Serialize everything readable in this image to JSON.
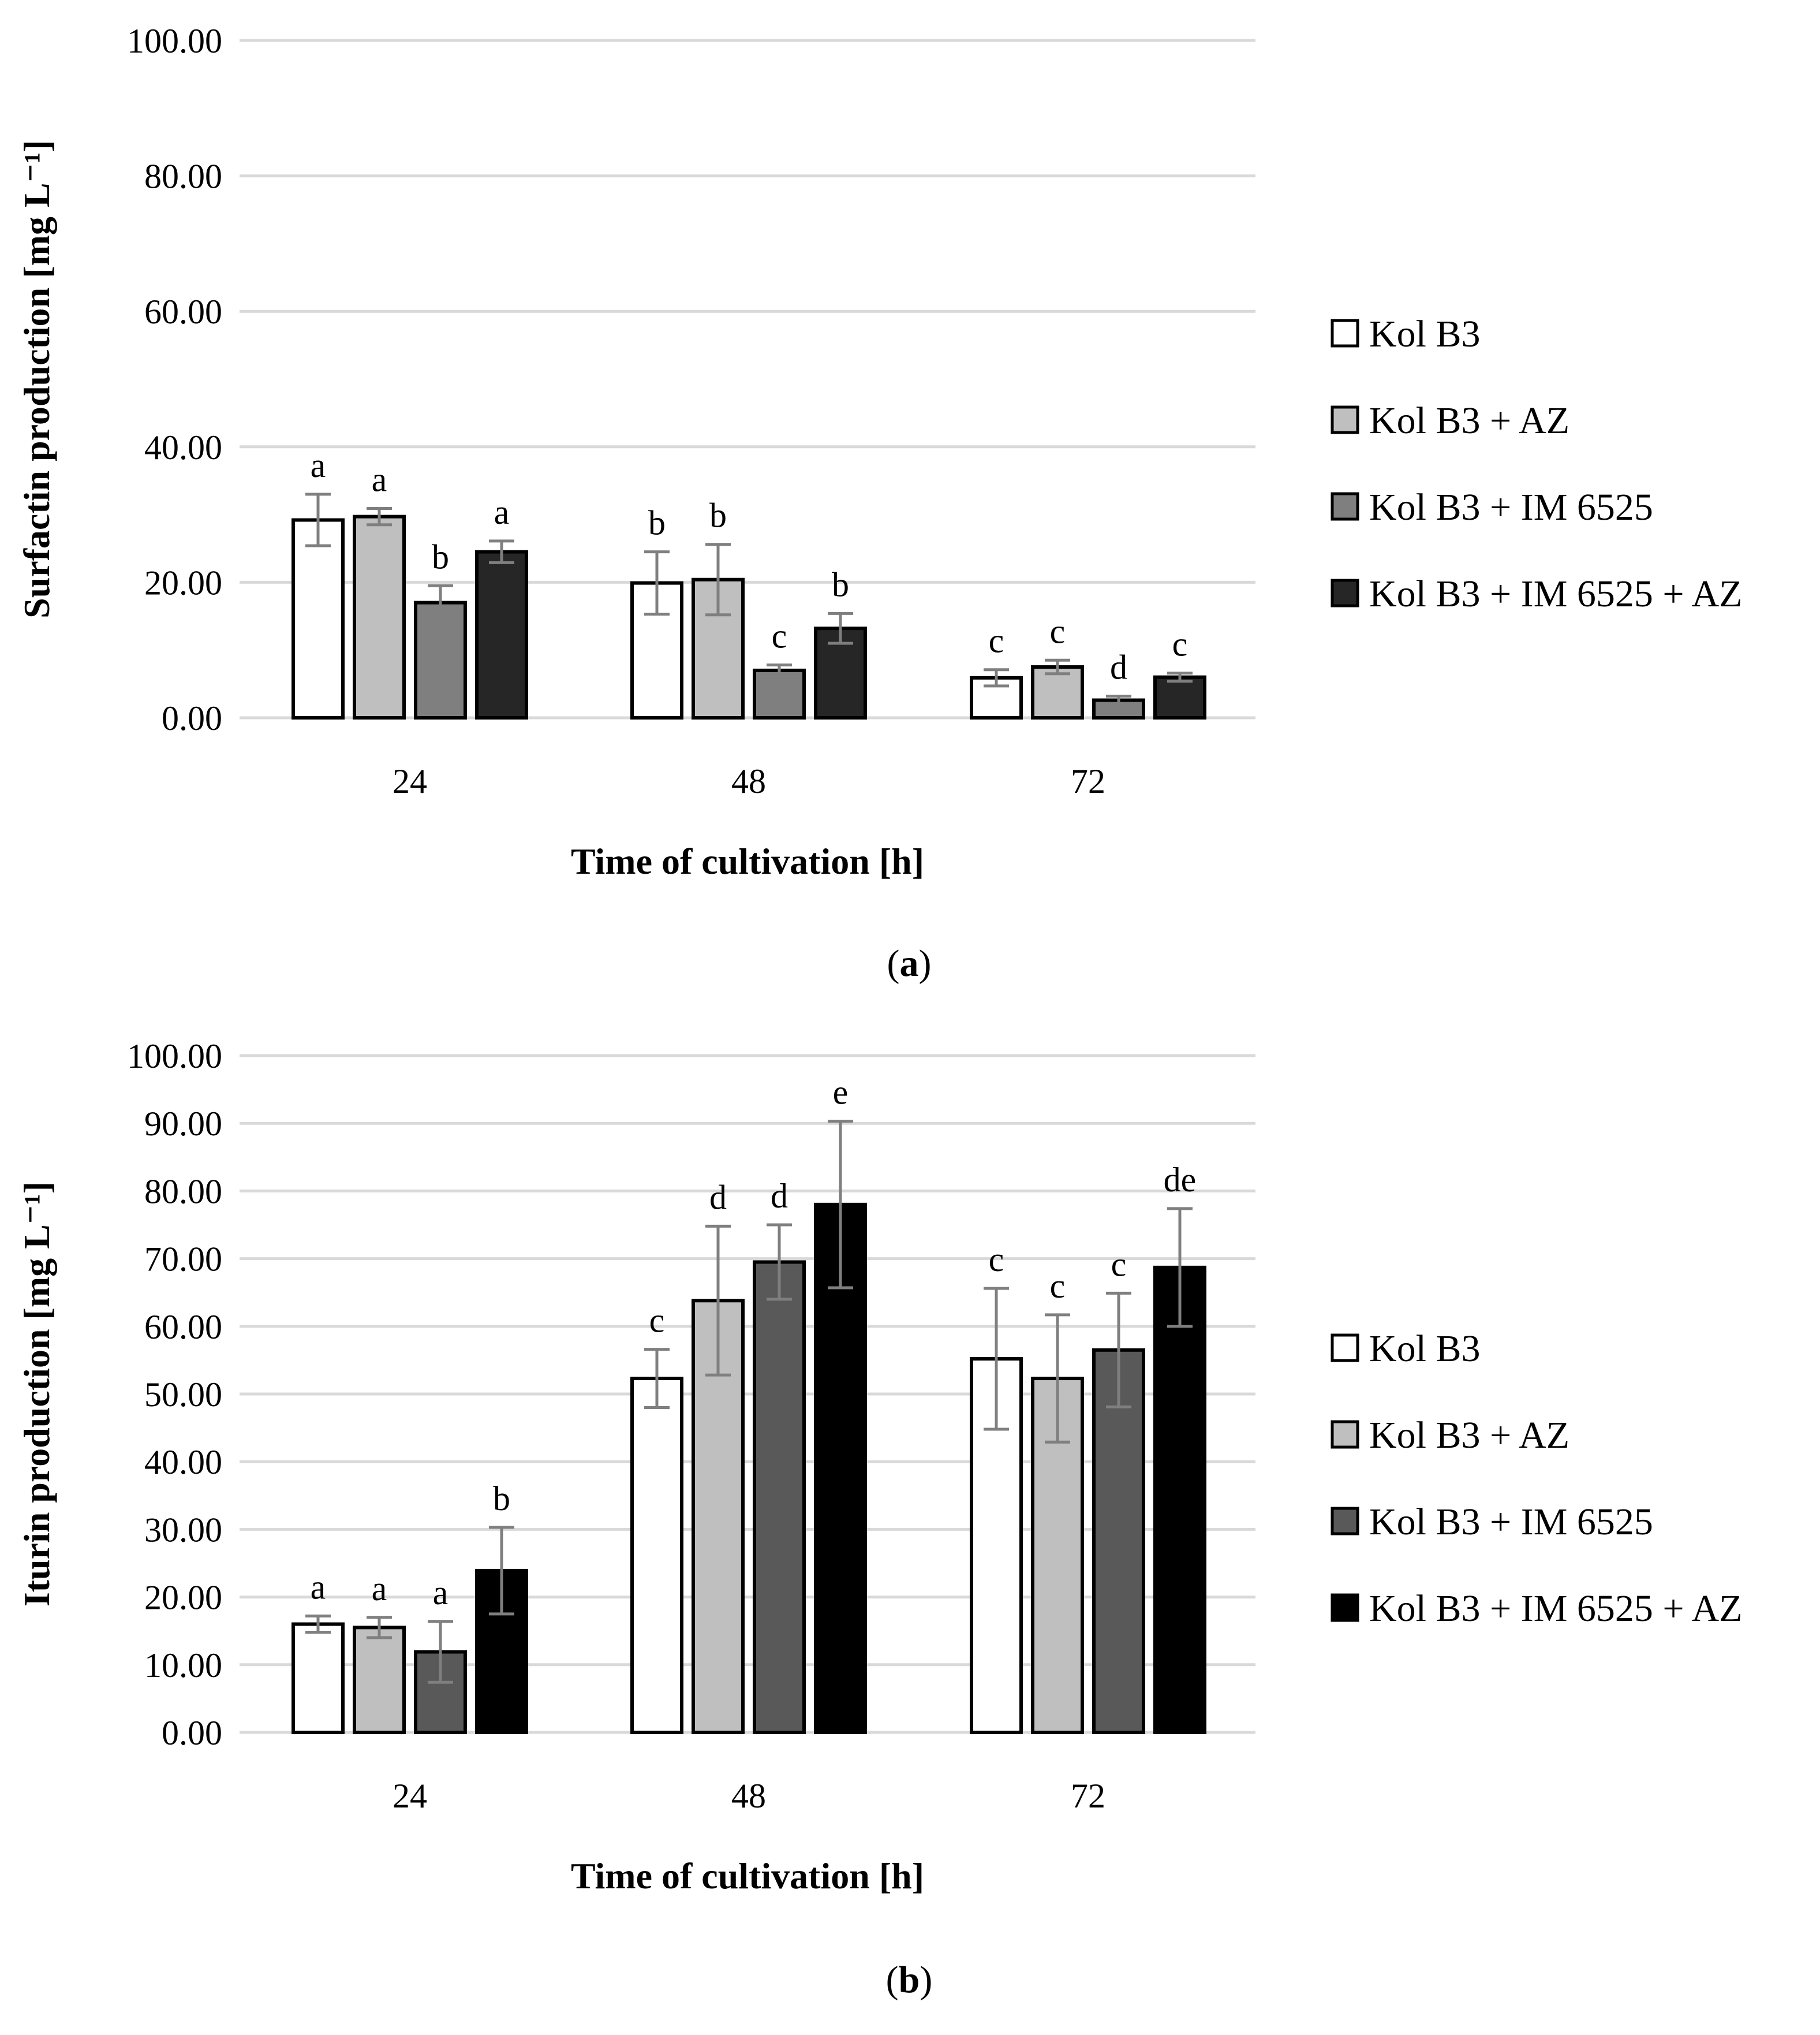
{
  "chart_data": [
    {
      "panel": "a",
      "caption": "a",
      "type": "bar",
      "title": "",
      "xlabel": "Time of cultivation [h]",
      "ylabel": "Surfactin production [mg L⁻¹]",
      "ylim": [
        0,
        100
      ],
      "yticks": [
        "0.00",
        "20.00",
        "40.00",
        "60.00",
        "80.00",
        "100.00"
      ],
      "ytick_values": [
        0,
        20,
        40,
        60,
        80,
        100
      ],
      "grid": true,
      "legend_position": "right",
      "categories": [
        "24",
        "48",
        "72"
      ],
      "series": [
        {
          "name": "Kol B3",
          "color": "#ffffff",
          "values": [
            29.2,
            19.9,
            5.9
          ],
          "errors": [
            3.8,
            4.6,
            1.2
          ],
          "labels": [
            "a",
            "b",
            "c"
          ]
        },
        {
          "name": "Kol B3 + AZ",
          "color": "#bfbfbf",
          "values": [
            29.7,
            20.4,
            7.5
          ],
          "errors": [
            1.2,
            5.2,
            1.0
          ],
          "labels": [
            "a",
            "b",
            "c"
          ]
        },
        {
          "name": "Kol B3 + IM 6525",
          "color": "#7f7f7f",
          "values": [
            17.0,
            7.0,
            2.6
          ],
          "errors": [
            2.5,
            0.8,
            0.6
          ],
          "labels": [
            "b",
            "c",
            "d"
          ]
        },
        {
          "name": "Kol B3 + IM 6525 + AZ",
          "color": "#262626",
          "values": [
            24.5,
            13.2,
            6.0
          ],
          "errors": [
            1.6,
            2.2,
            0.6
          ],
          "labels": [
            "a",
            "b",
            "c"
          ]
        }
      ]
    },
    {
      "panel": "b",
      "caption": "b",
      "type": "bar",
      "title": "",
      "xlabel": "Time of cultivation [h]",
      "ylabel": "Iturin production [mg L⁻¹]",
      "ylim": [
        0,
        100
      ],
      "yticks": [
        "0.00",
        "10.00",
        "20.00",
        "30.00",
        "40.00",
        "50.00",
        "60.00",
        "70.00",
        "80.00",
        "90.00",
        "100.00"
      ],
      "ytick_values": [
        0,
        10,
        20,
        30,
        40,
        50,
        60,
        70,
        80,
        90,
        100
      ],
      "grid": true,
      "legend_position": "right",
      "categories": [
        "24",
        "48",
        "72"
      ],
      "series": [
        {
          "name": "Kol B3",
          "color": "#ffffff",
          "values": [
            16.0,
            52.3,
            55.2
          ],
          "errors": [
            1.2,
            4.3,
            10.4
          ],
          "labels": [
            "a",
            "c",
            "c"
          ]
        },
        {
          "name": "Kol B3 + AZ",
          "color": "#bfbfbf",
          "values": [
            15.5,
            63.8,
            52.3
          ],
          "errors": [
            1.5,
            11.0,
            9.4
          ],
          "labels": [
            "a",
            "d",
            "c"
          ]
        },
        {
          "name": "Kol B3 + IM 6525",
          "color": "#595959",
          "values": [
            11.9,
            69.5,
            56.5
          ],
          "errors": [
            4.5,
            5.5,
            8.4
          ],
          "labels": [
            "a",
            "d",
            "c"
          ]
        },
        {
          "name": "Kol B3 + IM 6525 + AZ",
          "color": "#000000",
          "values": [
            23.9,
            78.0,
            68.7
          ],
          "errors": [
            6.4,
            12.3,
            8.7
          ],
          "labels": [
            "b",
            "e",
            "de"
          ]
        }
      ]
    }
  ]
}
